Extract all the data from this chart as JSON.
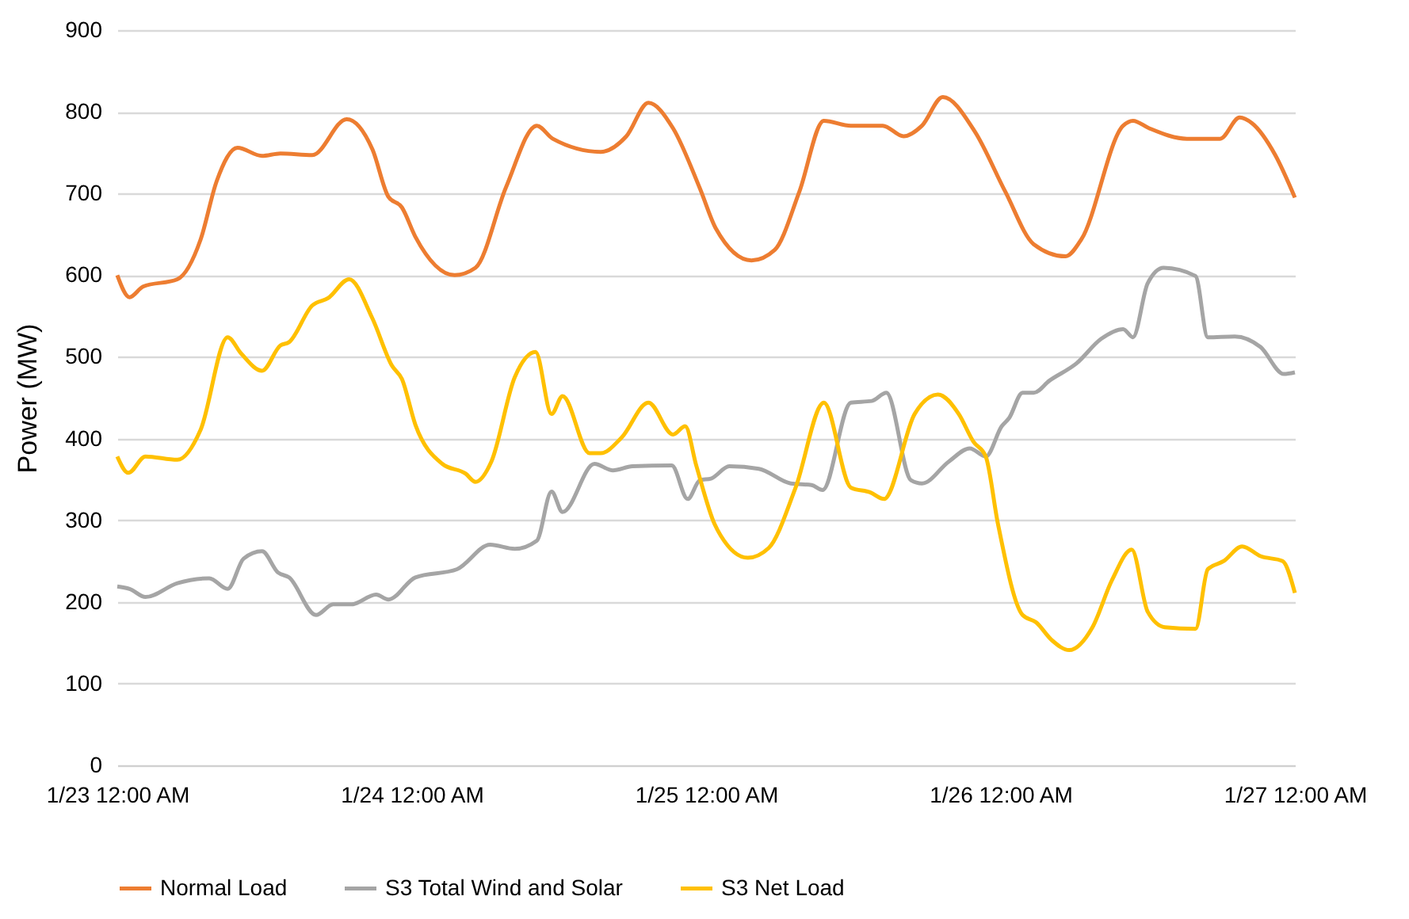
{
  "chart_data": {
    "type": "line",
    "ylabel": "Power  (MW)",
    "ylim": [
      0,
      900
    ],
    "yticks": [
      0,
      100,
      200,
      300,
      400,
      500,
      600,
      700,
      800,
      900
    ],
    "xlim": [
      "--01-23T00:00",
      "--01-27T00:00"
    ],
    "xticks": [
      {
        "value": "--01-23T00:00",
        "label": "1/23 12:00 AM"
      },
      {
        "value": "--01-24T00:00",
        "label": "1/24 12:00 AM"
      },
      {
        "value": "--01-25T00:00",
        "label": "1/25 12:00 AM"
      },
      {
        "value": "--01-26T00:00",
        "label": "1/26 12:00 AM"
      },
      {
        "value": "--01-27T00:00",
        "label": "1/27 12:00 AM"
      }
    ],
    "grid": "y",
    "legend": "bottom",
    "line_style": "solid",
    "series": [
      {
        "name": "Normal Load",
        "color": "#ed7d31",
        "x": [
          "--01-23T00:00",
          "--01-23T01:00",
          "--01-23T02:06",
          "--01-23T04:54",
          "--01-23T06:48",
          "--01-23T08:06",
          "--01-23T09:48",
          "--01-23T11:48",
          "--01-23T13:18",
          "--01-23T15:54",
          "--01-23T18:42",
          "--01-23T20:48",
          "--01-23T22:06",
          "--01-23T23:12",
          "--01-24T00:18",
          "--01-24T03:30",
          "--01-24T05:12",
          "--01-24T07:42",
          "--01-24T10:12",
          "--01-24T11:30",
          "--01-24T15:24",
          "--01-24T17:30",
          "--01-24T19:18",
          "--01-24T21:18",
          "--01-24T23:30",
          "--01-25T00:48",
          "--01-25T03:42",
          "--01-25T05:36",
          "--01-25T07:36",
          "--01-25T09:36",
          "--01-25T11:48",
          "--01-25T14:24",
          "--01-25T16:06",
          "--01-25T17:36",
          "--01-25T19:18",
          "--01-25T21:54",
          "--01-26T00:24",
          "--01-26T02:42",
          "--01-26T05:18",
          "--01-26T06:36",
          "--01-26T10:00",
          "--01-26T10:48",
          "--01-26T12:06",
          "--01-26T15:12",
          "--01-26T17:54",
          "--01-26T19:30",
          "--01-26T20:30",
          "--01-26T22:24",
          "--01-27T00:00"
        ],
        "values": [
          600,
          573,
          586,
          595,
          644,
          715,
          756,
          746,
          749,
          747,
          791,
          754,
          696,
          683,
          647,
          600,
          609,
          708,
          783,
          767,
          751,
          770,
          811,
          780,
          706,
          657,
          618,
          631,
          702,
          789,
          783,
          783,
          770,
          783,
          818,
          776,
          702,
          638,
          623,
          644,
          783,
          789,
          780,
          767,
          767,
          793,
          786,
          747,
          695
        ]
      },
      {
        "name": "S3 Total Wind and Solar",
        "color": "#a5a5a5",
        "x": [
          "--01-23T00:00",
          "--01-23T01:00",
          "--01-23T02:18",
          "--01-23T04:54",
          "--01-23T07:30",
          "--01-23T09:00",
          "--01-23T10:18",
          "--01-23T11:48",
          "--01-23T13:06",
          "--01-23T14:00",
          "--01-23T16:12",
          "--01-23T17:36",
          "--01-23T19:06",
          "--01-23T21:06",
          "--01-23T22:06",
          "--01-24T00:18",
          "--01-24T03:42",
          "--01-24T06:24",
          "--01-24T08:24",
          "--01-24T10:12",
          "--01-24T11:24",
          "--01-24T12:18",
          "--01-24T14:54",
          "--01-24T16:24",
          "--01-24T18:00",
          "--01-24T21:12",
          "--01-24T22:30",
          "--01-24T23:30",
          "--01-25T00:24",
          "--01-25T01:54",
          "--01-25T04:18",
          "--01-25T06:54",
          "--01-25T08:36",
          "--01-25T09:30",
          "--01-25T11:48",
          "--01-25T13:30",
          "--01-25T14:42",
          "--01-25T16:42",
          "--01-25T17:36",
          "--01-25T19:48",
          "--01-25T21:30",
          "--01-25T22:48",
          "--01-26T00:06",
          "--01-26T00:42",
          "--01-26T01:48",
          "--01-26T02:42",
          "--01-26T04:00",
          "--01-26T06:12",
          "--01-26T08:12",
          "--01-26T10:00",
          "--01-26T10:48",
          "--01-26T12:00",
          "--01-26T13:18",
          "--01-26T15:54",
          "--01-26T16:54",
          "--01-26T19:06",
          "--01-26T21:12",
          "--01-26T23:06",
          "--01-27T00:00"
        ],
        "values": [
          219,
          216,
          206,
          223,
          229,
          216,
          253,
          262,
          236,
          230,
          184,
          197,
          197,
          209,
          203,
          230,
          240,
          270,
          265,
          275,
          335,
          310,
          369,
          361,
          366,
          367,
          326,
          349,
          351,
          366,
          363,
          345,
          343,
          337,
          444,
          446,
          456,
          349,
          345,
          372,
          388,
          378,
          415,
          425,
          456,
          456,
          471,
          492,
          522,
          534,
          524,
          590,
          609,
          599,
          524,
          525,
          512,
          479,
          481
        ]
      },
      {
        "name": "S3 Net Load",
        "color": "#ffc000",
        "x": [
          "--01-23T00:00",
          "--01-23T00:54",
          "--01-23T02:18",
          "--01-23T04:54",
          "--01-23T06:48",
          "--01-23T09:00",
          "--01-23T10:06",
          "--01-23T11:48",
          "--01-23T13:18",
          "--01-23T14:00",
          "--01-23T15:54",
          "--01-23T17:12",
          "--01-23T18:54",
          "--01-23T20:48",
          "--01-23T22:24",
          "--01-23T23:12",
          "--01-24T00:18",
          "--01-24T02:30",
          "--01-24T04:24",
          "--01-24T05:12",
          "--01-24T06:30",
          "--01-24T08:24",
          "--01-24T10:06",
          "--01-24T11:24",
          "--01-24T12:18",
          "--01-24T14:30",
          "--01-24T15:24",
          "--01-24T17:06",
          "--01-24T19:18",
          "--01-24T21:18",
          "--01-24T22:18",
          "--01-24T23:12",
          "--01-25T00:42",
          "--01-25T01:12",
          "--01-25T03:24",
          "--01-25T05:06",
          "--01-25T07:18",
          "--01-25T09:36",
          "--01-25T11:48",
          "--01-25T13:24",
          "--01-25T14:30",
          "--01-25T17:00",
          "--01-25T18:54",
          "--01-25T20:36",
          "--01-25T21:48",
          "--01-25T22:48",
          "--01-25T23:48",
          "--01-26T01:48",
          "--01-26T02:54",
          "--01-26T04:12",
          "--01-26T05:36",
          "--01-26T07:30",
          "--01-26T09:06",
          "--01-26T10:42",
          "--01-26T12:00",
          "--01-26T13:24",
          "--01-26T15:54",
          "--01-26T16:54",
          "--01-26T18:12",
          "--01-26T19:42",
          "--01-26T21:12",
          "--01-26T23:00",
          "--01-27T00:00"
        ],
        "values": [
          378,
          358,
          378,
          374,
          411,
          524,
          504,
          483,
          514,
          518,
          563,
          572,
          595,
          547,
          489,
          473,
          417,
          369,
          357,
          347,
          372,
          475,
          506,
          430,
          452,
          382,
          382,
          401,
          444,
          405,
          415,
          367,
          295,
          281,
          254,
          266,
          340,
          444,
          340,
          334,
          326,
          430,
          454,
          430,
          396,
          378,
          295,
          184,
          175,
          153,
          141,
          169,
          227,
          264,
          188,
          169,
          167,
          240,
          250,
          268,
          256,
          250,
          211
        ]
      }
    ]
  }
}
